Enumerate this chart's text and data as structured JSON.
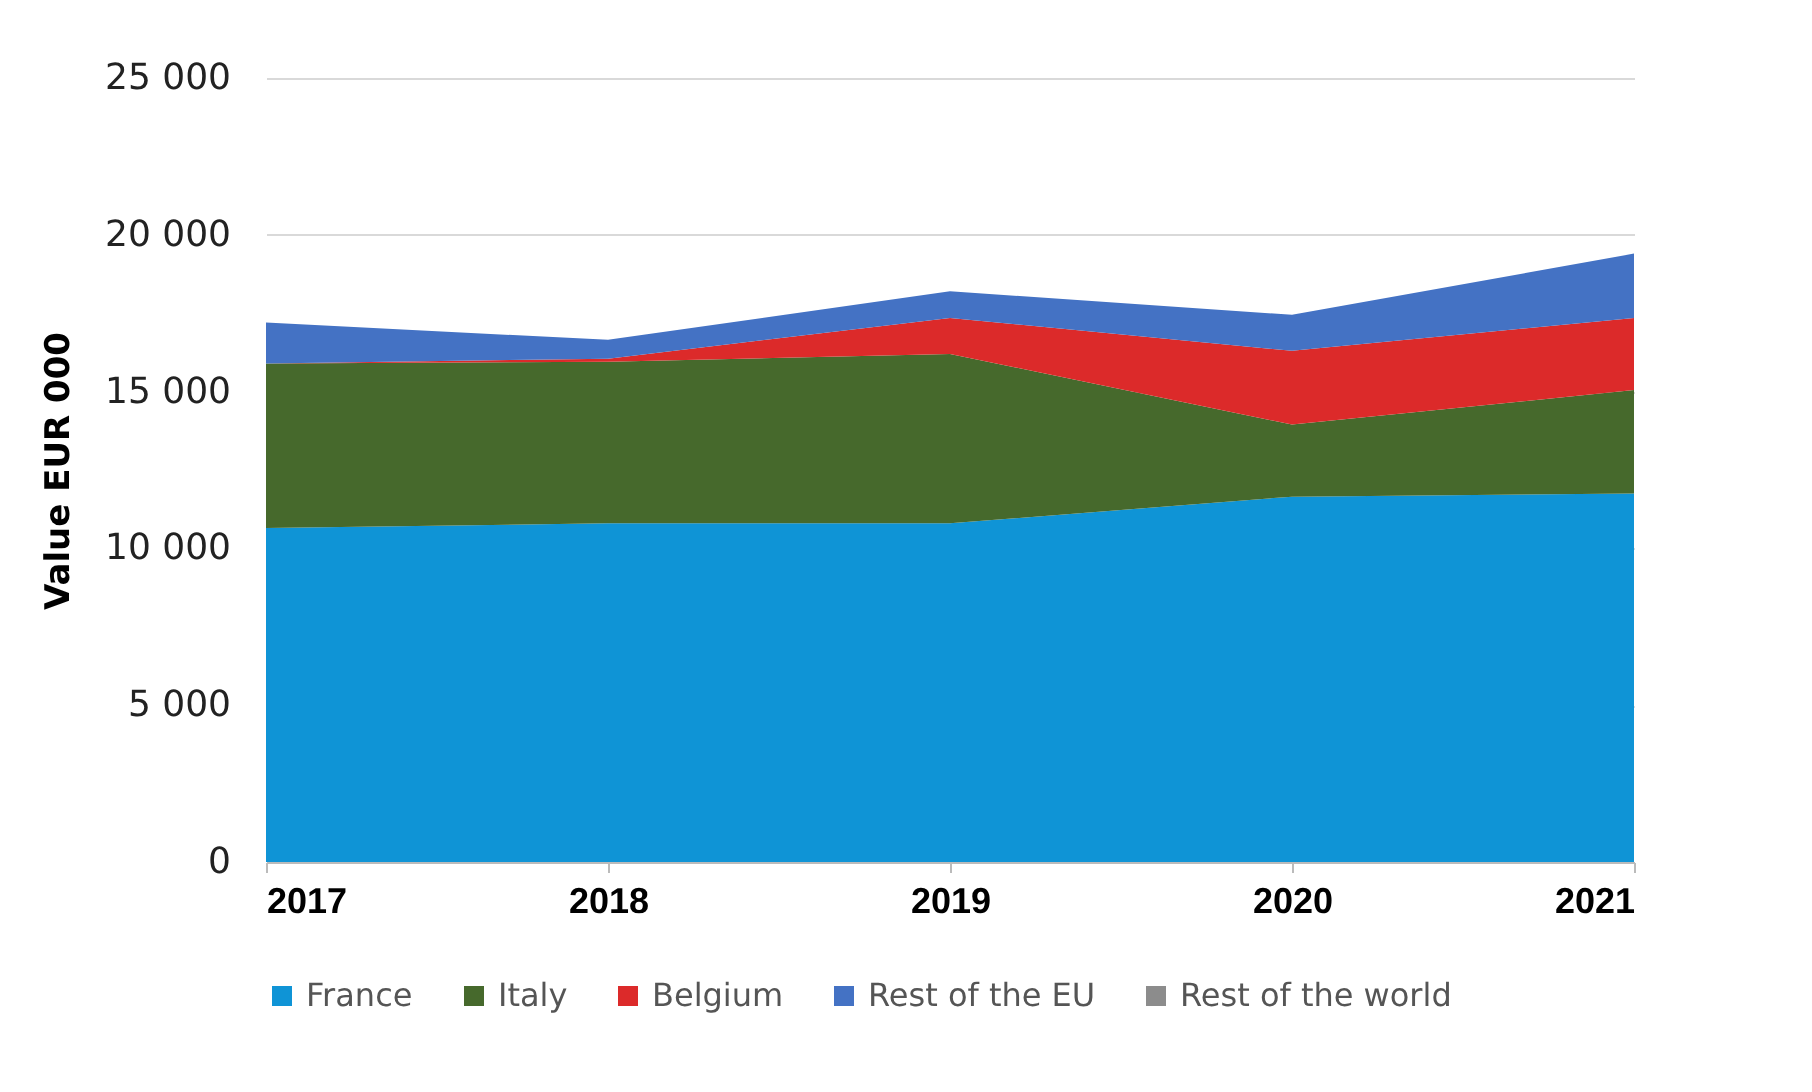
{
  "chart_data": {
    "type": "area",
    "stacked": true,
    "ylabel": "Value EUR 000",
    "categories": [
      "2017",
      "2018",
      "2019",
      "2020",
      "2021"
    ],
    "series": [
      {
        "name": "France",
        "color": "#0f94d6",
        "values": [
          10650,
          10800,
          10800,
          11650,
          11750
        ]
      },
      {
        "name": "Italy",
        "color": "#46692c",
        "values": [
          5250,
          5150,
          5400,
          2300,
          3300
        ]
      },
      {
        "name": "Belgium",
        "color": "#dc2a2a",
        "values": [
          0,
          100,
          1150,
          2350,
          2300
        ]
      },
      {
        "name": "Rest of the EU",
        "color": "#4472c4",
        "values": [
          1300,
          600,
          850,
          1150,
          2050
        ]
      },
      {
        "name": "Rest of the world",
        "color": "#8c8c8c",
        "values": [
          null,
          null,
          null,
          null,
          null
        ]
      }
    ],
    "ylim": [
      0,
      25000
    ],
    "yticks": [
      {
        "value": 0,
        "label": "0"
      },
      {
        "value": 5000,
        "label": "5 000"
      },
      {
        "value": 10000,
        "label": "10 000"
      },
      {
        "value": 15000,
        "label": "15 000"
      },
      {
        "value": 20000,
        "label": "20 000"
      },
      {
        "value": 25000,
        "label": "25 000"
      }
    ],
    "grid": "y",
    "legend": "bottom"
  }
}
